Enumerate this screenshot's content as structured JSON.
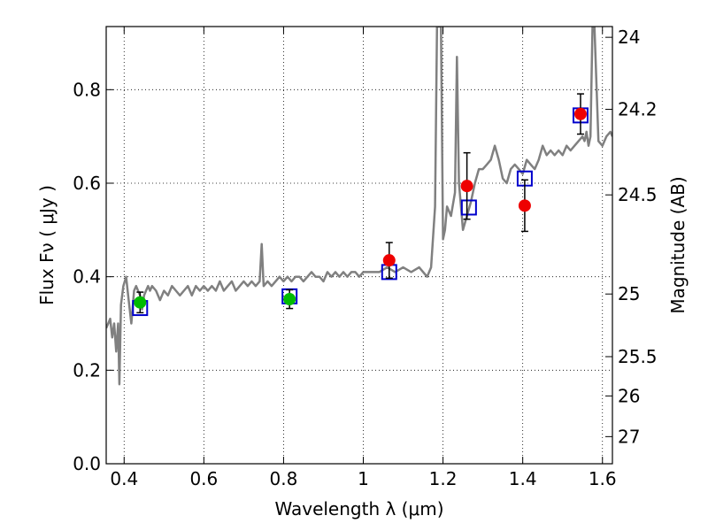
{
  "chart_data": {
    "type": "scatter",
    "title": "",
    "xlabel": "Wavelength  λ (μm)",
    "ylabel": "Flux  Fν  ( μJy )",
    "ylabel_right": "Magnitude (AB)",
    "xlim": [
      0.355,
      1.625
    ],
    "ylim": [
      0.0,
      0.935
    ],
    "grid": true,
    "legend": "none",
    "x_ticks": [
      0.4,
      0.6,
      0.8,
      1.0,
      1.2,
      1.4,
      1.6
    ],
    "x_tick_labels": [
      "0.4",
      "0.6",
      "0.8",
      "1",
      "1.2",
      "1.4",
      "1.6"
    ],
    "y_ticks": [
      0.0,
      0.2,
      0.4,
      0.6,
      0.8
    ],
    "y_tick_labels": [
      "0.0",
      "0.2",
      "0.4",
      "0.6",
      "0.8"
    ],
    "right_ticks": [
      {
        "label": "24",
        "flux": 0.912
      },
      {
        "label": "24.2",
        "flux": 0.758
      },
      {
        "label": "24.5",
        "flux": 0.575
      },
      {
        "label": "25",
        "flux": 0.363
      },
      {
        "label": "25.5",
        "flux": 0.229
      },
      {
        "label": "26",
        "flux": 0.145
      },
      {
        "label": "27",
        "flux": 0.058
      }
    ],
    "colors": {
      "spectrum": "#808080",
      "green_points": "#00bb00",
      "red_points": "#ee0000",
      "model_boxes": "#0000cc",
      "errorbars": "#000000"
    },
    "series": [
      {
        "kind": "line",
        "x": [
          0.355,
          0.36,
          0.365,
          0.37,
          0.375,
          0.38,
          0.385,
          0.388,
          0.392,
          0.398,
          0.405,
          0.41,
          0.418,
          0.425,
          0.43,
          0.435,
          0.44,
          0.445,
          0.45,
          0.455,
          0.46,
          0.465,
          0.47,
          0.48,
          0.49,
          0.5,
          0.51,
          0.52,
          0.53,
          0.54,
          0.55,
          0.56,
          0.57,
          0.58,
          0.59,
          0.6,
          0.61,
          0.62,
          0.63,
          0.64,
          0.65,
          0.66,
          0.67,
          0.68,
          0.69,
          0.7,
          0.71,
          0.72,
          0.73,
          0.74,
          0.745,
          0.75,
          0.76,
          0.77,
          0.78,
          0.79,
          0.8,
          0.81,
          0.82,
          0.83,
          0.84,
          0.85,
          0.86,
          0.87,
          0.88,
          0.89,
          0.9,
          0.91,
          0.92,
          0.93,
          0.94,
          0.95,
          0.96,
          0.97,
          0.98,
          0.99,
          1.0,
          1.02,
          1.04,
          1.06,
          1.08,
          1.1,
          1.12,
          1.14,
          1.16,
          1.17,
          1.18,
          1.185,
          1.19,
          1.195,
          1.2,
          1.205,
          1.21,
          1.22,
          1.23,
          1.235,
          1.24,
          1.245,
          1.25,
          1.26,
          1.27,
          1.28,
          1.29,
          1.3,
          1.31,
          1.32,
          1.33,
          1.34,
          1.35,
          1.36,
          1.37,
          1.38,
          1.39,
          1.4,
          1.41,
          1.42,
          1.43,
          1.44,
          1.45,
          1.46,
          1.47,
          1.48,
          1.49,
          1.5,
          1.51,
          1.52,
          1.53,
          1.54,
          1.55,
          1.555,
          1.56,
          1.565,
          1.57,
          1.575,
          1.58,
          1.59,
          1.6,
          1.61,
          1.62,
          1.625
        ],
        "y": [
          0.29,
          0.3,
          0.31,
          0.27,
          0.3,
          0.24,
          0.3,
          0.17,
          0.34,
          0.38,
          0.4,
          0.36,
          0.3,
          0.37,
          0.38,
          0.37,
          0.36,
          0.33,
          0.36,
          0.37,
          0.38,
          0.37,
          0.38,
          0.37,
          0.35,
          0.37,
          0.36,
          0.38,
          0.37,
          0.36,
          0.37,
          0.38,
          0.36,
          0.38,
          0.37,
          0.38,
          0.37,
          0.38,
          0.37,
          0.39,
          0.37,
          0.38,
          0.39,
          0.37,
          0.38,
          0.39,
          0.38,
          0.39,
          0.38,
          0.39,
          0.47,
          0.38,
          0.39,
          0.38,
          0.39,
          0.4,
          0.39,
          0.4,
          0.39,
          0.4,
          0.4,
          0.39,
          0.4,
          0.41,
          0.4,
          0.4,
          0.39,
          0.41,
          0.4,
          0.41,
          0.4,
          0.41,
          0.4,
          0.41,
          0.41,
          0.4,
          0.41,
          0.41,
          0.41,
          0.42,
          0.41,
          0.42,
          0.41,
          0.42,
          0.4,
          0.42,
          0.55,
          0.935,
          0.935,
          0.935,
          0.48,
          0.5,
          0.55,
          0.53,
          0.58,
          0.87,
          0.6,
          0.55,
          0.5,
          0.53,
          0.56,
          0.6,
          0.63,
          0.63,
          0.64,
          0.65,
          0.68,
          0.65,
          0.61,
          0.6,
          0.63,
          0.64,
          0.63,
          0.62,
          0.65,
          0.64,
          0.63,
          0.65,
          0.68,
          0.66,
          0.67,
          0.66,
          0.67,
          0.66,
          0.68,
          0.67,
          0.68,
          0.69,
          0.7,
          0.69,
          0.71,
          0.68,
          0.7,
          0.935,
          0.935,
          0.69,
          0.68,
          0.7,
          0.71,
          0.7
        ]
      },
      {
        "kind": "boxes",
        "x": [
          0.44,
          0.815,
          1.065,
          1.265,
          1.405,
          1.545
        ],
        "y": [
          0.333,
          0.358,
          0.41,
          0.548,
          0.61,
          0.745
        ]
      },
      {
        "kind": "points-green",
        "x": [
          0.44,
          0.815
        ],
        "y": [
          0.345,
          0.352
        ],
        "yerr": [
          0.022,
          0.02
        ]
      },
      {
        "kind": "points-red",
        "x": [
          1.065,
          1.26,
          1.405,
          1.545
        ],
        "y": [
          0.435,
          0.594,
          0.552,
          0.748
        ],
        "yerr": [
          0.038,
          0.071,
          0.055,
          0.043
        ]
      }
    ]
  }
}
